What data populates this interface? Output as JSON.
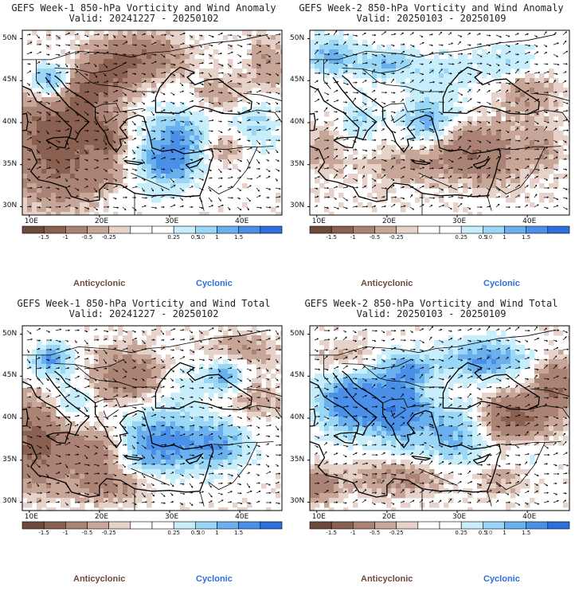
{
  "colors": {
    "anticyclonic": "#6e4a3c",
    "cyclonic": "#2f6fdc",
    "scale": [
      "#6e4a3c",
      "#8a6050",
      "#ab8374",
      "#c8a697",
      "#e6d2c8",
      "#ffffff",
      "#ffffff",
      "#c8eefc",
      "#9ad6f6",
      "#6ab0ee",
      "#4a90e8",
      "#2f6fdc"
    ]
  },
  "labels": {
    "anticyclonic": "Anticyclonic",
    "cyclonic": "Cyclonic"
  },
  "colorbar": {
    "ticks": [
      "-1.5",
      "-1",
      "-0.5",
      "-0.25",
      "0.25",
      "0.5",
      "1",
      "1.5"
    ],
    "factor": "10"
  },
  "panels": [
    {
      "title": "GEFS Week-1 850-hPa Vorticity and Wind Anomaly",
      "valid": "Valid: 20241227 - 20250102",
      "lat_labels": [
        "50N",
        "45N",
        "40N",
        "35N",
        "30N"
      ],
      "lon_labels": [
        "10E",
        "20E",
        "30E",
        "40E"
      ],
      "chart_data": {
        "type": "heatmap",
        "variable": "850-hPa relative vorticity anomaly",
        "lon_range": [
          9,
          46
        ],
        "lat_range": [
          29,
          51
        ],
        "legend": "bottom"
      }
    },
    {
      "title": "GEFS Week-2 850-hPa Vorticity and Wind Anomaly",
      "valid": "Valid: 20250103 - 20250109",
      "lat_labels": [
        "50N",
        "45N",
        "40N",
        "35N",
        "30N"
      ],
      "lon_labels": [
        "10E",
        "20E",
        "30E",
        "40E"
      ],
      "chart_data": {
        "type": "heatmap",
        "variable": "850-hPa relative vorticity anomaly",
        "lon_range": [
          9,
          46
        ],
        "lat_range": [
          29,
          51
        ],
        "legend": "bottom"
      }
    },
    {
      "title": "GEFS Week-1 850-hPa Vorticity and Wind Total",
      "valid": "Valid: 20241227 - 20250102",
      "lat_labels": [
        "50N",
        "45N",
        "40N",
        "35N",
        "30N"
      ],
      "lon_labels": [
        "10E",
        "20E",
        "30E",
        "40E"
      ],
      "chart_data": {
        "type": "heatmap",
        "variable": "850-hPa relative vorticity total",
        "lon_range": [
          9,
          46
        ],
        "lat_range": [
          29,
          51
        ],
        "legend": "bottom"
      }
    },
    {
      "title": "GEFS Week-2 850-hPa Vorticity and Wind Total",
      "valid": "Valid: 20250103 - 20250109",
      "lat_labels": [
        "50N",
        "45N",
        "40N",
        "35N",
        "30N"
      ],
      "lon_labels": [
        "10E",
        "20E",
        "30E",
        "40E"
      ],
      "chart_data": {
        "type": "heatmap",
        "variable": "850-hPa relative vorticity total",
        "lon_range": [
          9,
          46
        ],
        "lat_range": [
          29,
          51
        ],
        "legend": "bottom"
      }
    }
  ]
}
